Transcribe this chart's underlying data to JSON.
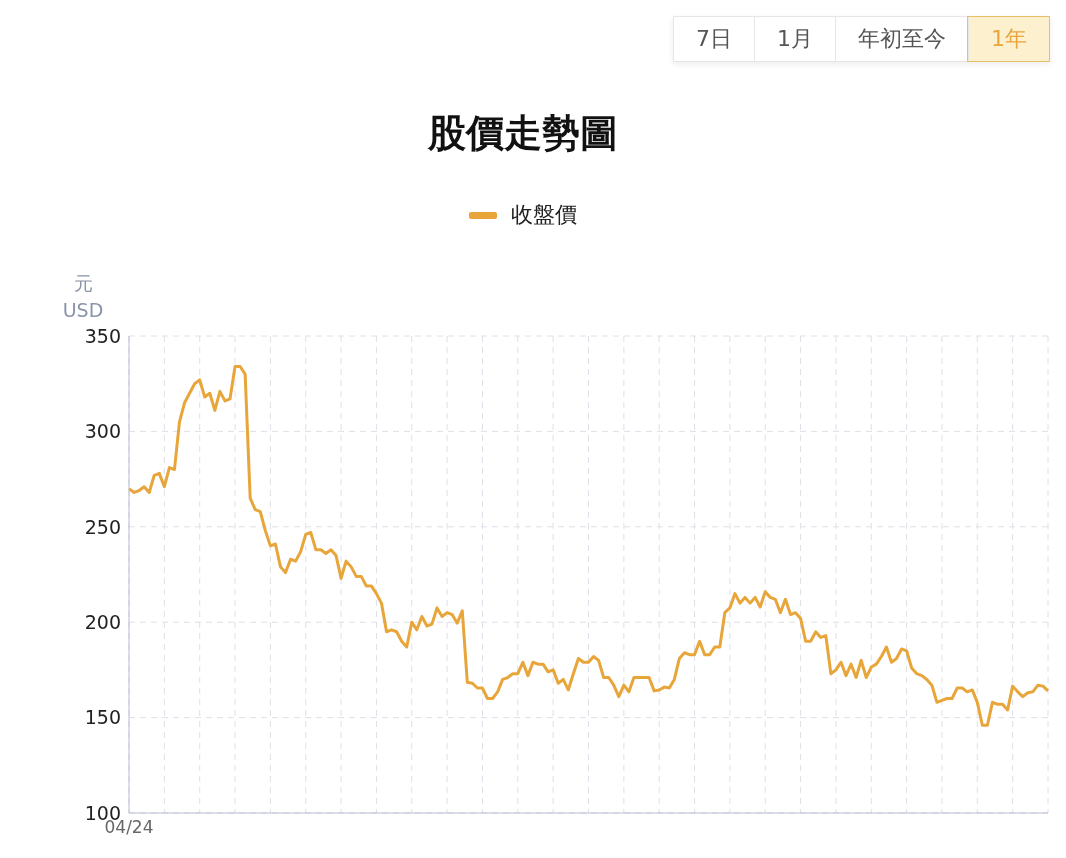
{
  "chart_data": {
    "type": "line",
    "title": "股價走勢圖",
    "ylabel": "元\nUSD",
    "legend": "top",
    "annotations": [
      "7日",
      "1月",
      "年初至今",
      "1年"
    ],
    "grid": true,
    "ylim": [
      100,
      350
    ],
    "yticks": [
      100,
      150,
      200,
      250,
      300,
      350
    ],
    "categories": [
      "04/24",
      null,
      null,
      null,
      null,
      null,
      null,
      null,
      null,
      null,
      null,
      null,
      null,
      null,
      null,
      null,
      null,
      null,
      null,
      null,
      null,
      null,
      null,
      null,
      null,
      null,
      null,
      null,
      null,
      null,
      null,
      null,
      null,
      null,
      null,
      null,
      null,
      null,
      null,
      null,
      null,
      null,
      null,
      null,
      null,
      null,
      null,
      null,
      null,
      null,
      null,
      null,
      null,
      null,
      null,
      null,
      null,
      null,
      null,
      null,
      null,
      null,
      null,
      null,
      null,
      null,
      null,
      null,
      null,
      null,
      null,
      null,
      null,
      null,
      null,
      null,
      null,
      null,
      null,
      null,
      null,
      null,
      null,
      null,
      null,
      null,
      null,
      null,
      null,
      null,
      null,
      null,
      null,
      null,
      null,
      null,
      null,
      null,
      null,
      null,
      null,
      null,
      null,
      null,
      null,
      null,
      null,
      null,
      null,
      null,
      null,
      null,
      null,
      null,
      null,
      null,
      null,
      null,
      null,
      null,
      null,
      null,
      null,
      null,
      null,
      null,
      null,
      null,
      null,
      null,
      null,
      null,
      null,
      null,
      null,
      null,
      null,
      null,
      null,
      null,
      null,
      null,
      null,
      null,
      null,
      null,
      null,
      null,
      null,
      null,
      null,
      null,
      null,
      null,
      null,
      null,
      null,
      null,
      null,
      null,
      null,
      null,
      null,
      null,
      null,
      null,
      null,
      null,
      null,
      null,
      null,
      null,
      null,
      null,
      null,
      null,
      null,
      null,
      null,
      null,
      null,
      null,
      null
    ],
    "series": [
      {
        "name": "收盤價",
        "color": "#e8a53a",
        "values": [
          270,
          268,
          269,
          271,
          268,
          277,
          278,
          271,
          281,
          280,
          305,
          315,
          320,
          325,
          327,
          318,
          320,
          311,
          321,
          316,
          317,
          334,
          334,
          330,
          265,
          259,
          258,
          248,
          240,
          241,
          229,
          226,
          233,
          232,
          237,
          246,
          247,
          238,
          238,
          236,
          238,
          235,
          223,
          232,
          229,
          224,
          224,
          219,
          219,
          215,
          210,
          195,
          196,
          195,
          190,
          187,
          200,
          196,
          203,
          198,
          199,
          207.5,
          203,
          205,
          204,
          199.5,
          206,
          168.5,
          168,
          165.5,
          165.5,
          160,
          160,
          163.5,
          170,
          171,
          173,
          173,
          179,
          172,
          179,
          178,
          178,
          174,
          175,
          168,
          170,
          164.5,
          173,
          181,
          179,
          179,
          182,
          180,
          171,
          171,
          167,
          161,
          167,
          163.5,
          171,
          171,
          171,
          171,
          164,
          164.5,
          166,
          165.5,
          170,
          181,
          184,
          183,
          183,
          190,
          183,
          183,
          187,
          187,
          205,
          207.5,
          215,
          210,
          213,
          210,
          213,
          208,
          216,
          213,
          212,
          205,
          212,
          204,
          205,
          202,
          190,
          190,
          195,
          192,
          193,
          173,
          175,
          179,
          172,
          178,
          171,
          180,
          171,
          176.5,
          178,
          182,
          187,
          179,
          181,
          186,
          185,
          176,
          173,
          172,
          170,
          167,
          158,
          159,
          160,
          160,
          165.5,
          165.5,
          163.5,
          164.5,
          158,
          146,
          146,
          158,
          157,
          157,
          154,
          166.5,
          163.5,
          161,
          163,
          163.5,
          167,
          166.5,
          164
        ]
      }
    ]
  }
}
